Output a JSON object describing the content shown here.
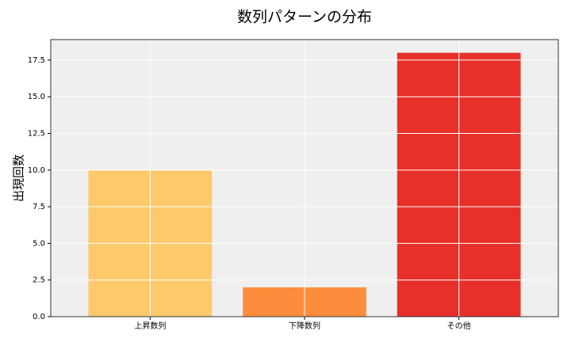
{
  "chart_data": {
    "type": "bar",
    "title": "数列パターンの分布",
    "y_label": "出現回数",
    "categories": [
      "上昇数列",
      "下降数列",
      "その他"
    ],
    "values": [
      10,
      2,
      18
    ],
    "colors": [
      "#fdc96a",
      "#fd8d3c",
      "#e8302a"
    ],
    "ylim": [
      0,
      18.9
    ],
    "yticks": [
      {
        "value": 0,
        "label": "0.0"
      },
      2.5,
      {
        "value": 5,
        "label": "5.0"
      },
      7.5,
      {
        "value": 10,
        "label": "10.0"
      },
      12.5,
      {
        "value": 15,
        "label": "15.0"
      },
      17.5
    ],
    "grid": true
  }
}
